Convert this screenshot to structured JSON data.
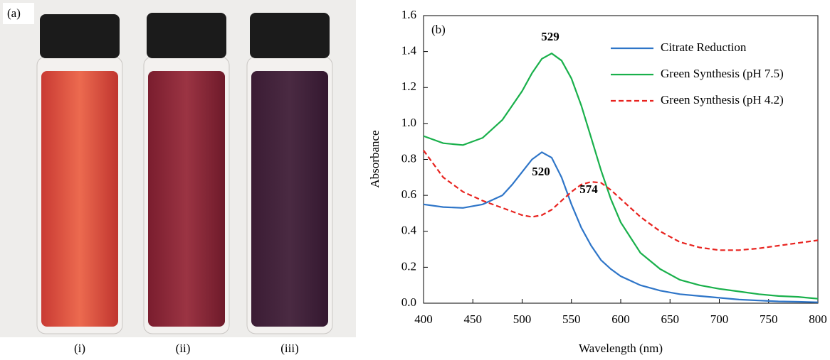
{
  "photo": {
    "label": "(a)",
    "captions": [
      "(i)",
      "(ii)",
      "(iii)"
    ]
  },
  "chart_data": {
    "type": "line",
    "panel_label": "(b)",
    "x_label": "Wavelength (nm)",
    "y_label": "Absorbance",
    "x": [
      400,
      420,
      440,
      460,
      480,
      490,
      500,
      510,
      520,
      530,
      540,
      550,
      560,
      570,
      580,
      590,
      600,
      620,
      640,
      660,
      680,
      700,
      720,
      740,
      760,
      780,
      800
    ],
    "series": [
      {
        "name": "Citrate Reduction",
        "color": "#2e75c8",
        "dash": false,
        "values": [
          0.55,
          0.535,
          0.53,
          0.55,
          0.6,
          0.66,
          0.73,
          0.8,
          0.84,
          0.81,
          0.7,
          0.55,
          0.42,
          0.32,
          0.24,
          0.19,
          0.15,
          0.1,
          0.07,
          0.05,
          0.04,
          0.03,
          0.02,
          0.015,
          0.01,
          0.008,
          0.005
        ]
      },
      {
        "name": "Green Synthesis (pH 7.5)",
        "color": "#19b04b",
        "dash": false,
        "values": [
          0.93,
          0.89,
          0.88,
          0.92,
          1.02,
          1.1,
          1.18,
          1.28,
          1.36,
          1.39,
          1.35,
          1.25,
          1.1,
          0.92,
          0.74,
          0.58,
          0.45,
          0.28,
          0.19,
          0.13,
          0.1,
          0.08,
          0.065,
          0.05,
          0.04,
          0.035,
          0.025
        ]
      },
      {
        "name": "Green Synthesis (pH 4.2)",
        "color": "#e8231f",
        "dash": true,
        "values": [
          0.85,
          0.7,
          0.62,
          0.57,
          0.53,
          0.51,
          0.49,
          0.48,
          0.49,
          0.52,
          0.57,
          0.62,
          0.66,
          0.675,
          0.67,
          0.63,
          0.58,
          0.48,
          0.4,
          0.34,
          0.31,
          0.295,
          0.295,
          0.305,
          0.32,
          0.335,
          0.35
        ]
      }
    ],
    "annotations": [
      "529",
      "520",
      "574"
    ],
    "xlim": [
      400,
      800
    ],
    "xticks": [
      400,
      450,
      500,
      550,
      600,
      650,
      700,
      750,
      800
    ],
    "ylim": [
      0,
      1.6
    ],
    "yticks": [
      {
        "value": 0,
        "label": "0.0"
      },
      0.2,
      0.4,
      0.6,
      0.8,
      {
        "value": 1,
        "label": "1.0"
      },
      1.2,
      1.4,
      1.6
    ]
  }
}
